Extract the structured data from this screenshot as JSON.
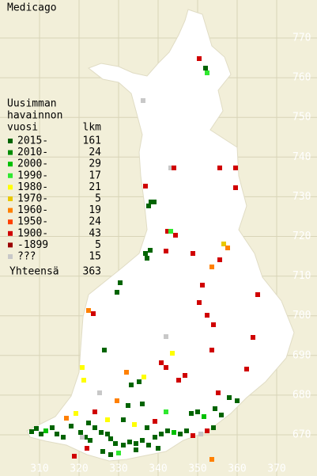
{
  "title": "Medicago",
  "legend": {
    "heading": [
      "Uusimman",
      "havainnon",
      "vuosi"
    ],
    "count_heading": "lkm",
    "rows": [
      {
        "label": "2015-",
        "count": 161,
        "color": "#006400"
      },
      {
        "label": "2010-",
        "count": 24,
        "color": "#008c00"
      },
      {
        "label": "2000-",
        "count": 29,
        "color": "#00c000"
      },
      {
        "label": "1990-",
        "count": 17,
        "color": "#30e830"
      },
      {
        "label": "1980-",
        "count": 21,
        "color": "#ffff00"
      },
      {
        "label": "1970-",
        "count": 5,
        "color": "#e8c800"
      },
      {
        "label": "1960-",
        "count": 19,
        "color": "#ff8000"
      },
      {
        "label": "1950-",
        "count": 24,
        "color": "#ff4000"
      },
      {
        "label": "1900-",
        "count": 43,
        "color": "#d00000"
      },
      {
        "label": "-1899",
        "count": 5,
        "color": "#9a0000"
      },
      {
        "label": "???",
        "count": 15,
        "color": "#c8c8c8"
      }
    ],
    "total": {
      "label": "Yhteensä",
      "count": 363
    }
  },
  "axes": {
    "y_labels": [
      "770",
      "760",
      "750",
      "740",
      "730",
      "720",
      "710",
      "700",
      "690",
      "680",
      "670"
    ],
    "x_labels": [
      "310",
      "320",
      "330",
      "340",
      "350",
      "360",
      "370"
    ]
  }
}
